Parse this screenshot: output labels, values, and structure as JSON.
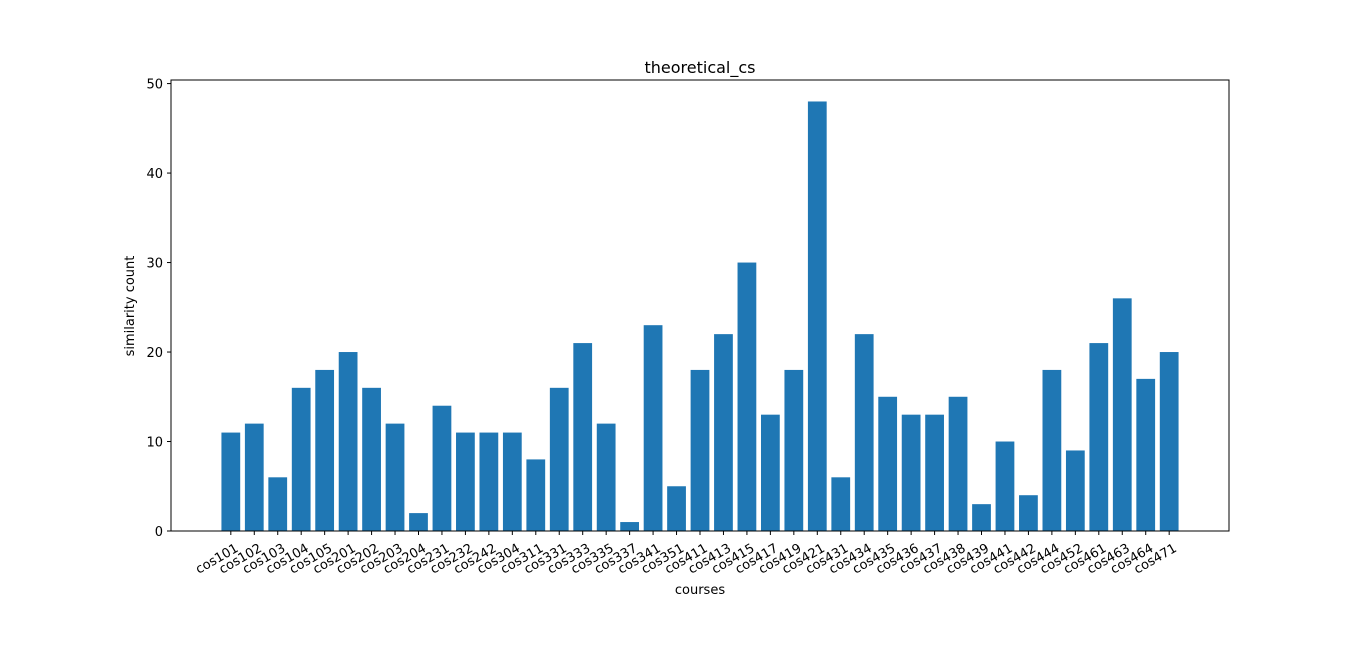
{
  "chart_data": {
    "type": "bar",
    "title": "theoretical_cs",
    "xlabel": "courses",
    "ylabel": "similarity count",
    "ylim": [
      0,
      50.4
    ],
    "yticks": [
      0,
      10,
      20,
      30,
      40,
      50
    ],
    "grid": false,
    "bar_color": "#1f77b4",
    "categories": [
      "cos101",
      "cos102",
      "cos103",
      "cos104",
      "cos105",
      "cos201",
      "cos202",
      "cos203",
      "cos204",
      "cos231",
      "cos232",
      "cos242",
      "cos304",
      "cos311",
      "cos331",
      "cos333",
      "cos335",
      "cos337",
      "cos341",
      "cos351",
      "cos411",
      "cos413",
      "cos415",
      "cos417",
      "cos419",
      "cos421",
      "cos431",
      "cos434",
      "cos435",
      "cos436",
      "cos437",
      "cos438",
      "cos439",
      "cos441",
      "cos442",
      "cos444",
      "cos452",
      "cos461",
      "cos463",
      "cos464",
      "cos471"
    ],
    "values": [
      11,
      12,
      6,
      16,
      18,
      20,
      16,
      12,
      2,
      14,
      11,
      11,
      11,
      8,
      16,
      21,
      12,
      1,
      23,
      5,
      18,
      22,
      30,
      13,
      18,
      48,
      6,
      22,
      15,
      13,
      13,
      15,
      3,
      10,
      4,
      18,
      9,
      21,
      26,
      17,
      20
    ]
  }
}
